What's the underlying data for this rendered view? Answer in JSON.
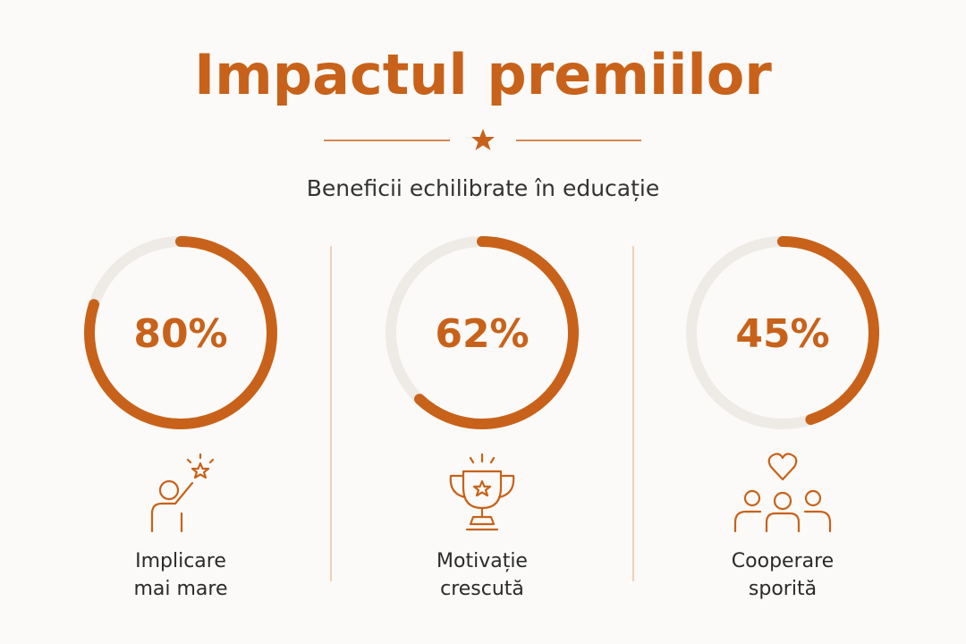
{
  "chart_data": {
    "type": "gauge",
    "title": "Impactul premiilor",
    "subtitle": "Beneficii echilibrate în educație",
    "categories": [
      "Implicare mai mare",
      "Motivație crescută",
      "Cooperare sporită"
    ],
    "values": [
      80,
      62,
      45
    ],
    "value_labels": [
      "80%",
      "62%",
      "45%"
    ],
    "ylim": [
      0,
      100
    ],
    "color": "#c8621a",
    "track_color": "#eeebe6"
  }
}
